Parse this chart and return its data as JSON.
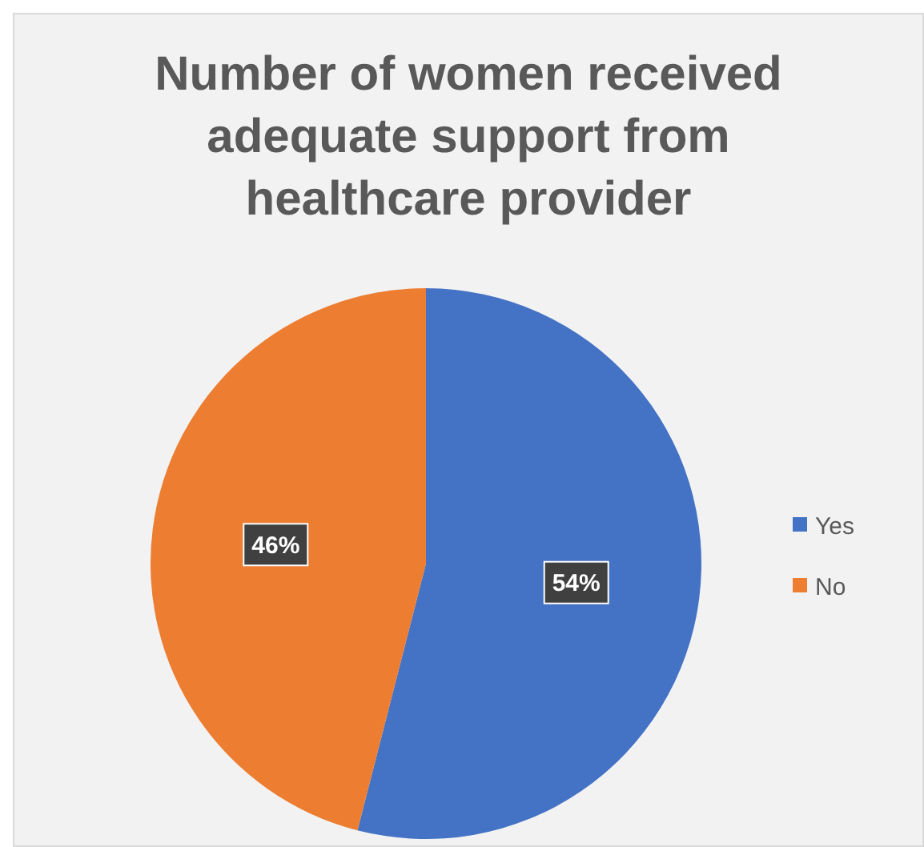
{
  "chart_data": {
    "type": "pie",
    "title": "Number of women received adequate support from healthcare provider",
    "categories": [
      "Yes",
      "No"
    ],
    "values": [
      54,
      46
    ],
    "colors": [
      "#4472c4",
      "#ed7d31"
    ],
    "value_labels": [
      "54%",
      "46%"
    ],
    "legend": "right"
  }
}
